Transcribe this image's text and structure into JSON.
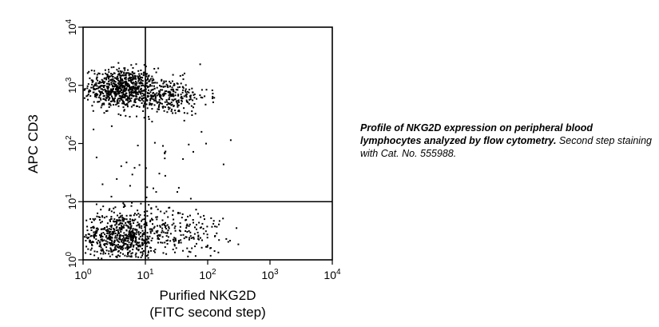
{
  "chart_data": {
    "type": "scatter",
    "title": "",
    "xlabel": [
      "Purified NKG2D",
      "(FITC second step)"
    ],
    "ylabel": "APC CD3",
    "x_scale": "log",
    "y_scale": "log",
    "xlim": [
      1,
      10000
    ],
    "ylim": [
      1,
      10000
    ],
    "xticks": [
      {
        "value": 1,
        "base": "10",
        "exp": "0"
      },
      {
        "value": 10,
        "base": "10",
        "exp": "1"
      },
      {
        "value": 100,
        "base": "10",
        "exp": "2"
      },
      {
        "value": 1000,
        "base": "10",
        "exp": "3"
      },
      {
        "value": 10000,
        "base": "10",
        "exp": "4"
      }
    ],
    "yticks": [
      {
        "value": 1,
        "base": "10",
        "exp": "0"
      },
      {
        "value": 10,
        "base": "10",
        "exp": "1"
      },
      {
        "value": 100,
        "base": "10",
        "exp": "2"
      },
      {
        "value": 1000,
        "base": "10",
        "exp": "3"
      },
      {
        "value": 10000,
        "base": "10",
        "exp": "4"
      }
    ],
    "quadrant_gates": {
      "x": 10,
      "y": 10
    },
    "point_color": "#000000",
    "clusters": [
      {
        "x_center": 4,
        "y_center": 900,
        "x_spread_decades": 0.28,
        "y_spread_decades": 0.17,
        "count": 700
      },
      {
        "x_center": 20,
        "y_center": 650,
        "x_spread_decades": 0.35,
        "y_spread_decades": 0.16,
        "count": 320
      },
      {
        "x_center": 4,
        "y_center": 2.5,
        "x_spread_decades": 0.3,
        "y_spread_decades": 0.22,
        "count": 650
      },
      {
        "x_center": 30,
        "y_center": 3,
        "x_spread_decades": 0.4,
        "y_spread_decades": 0.24,
        "count": 230
      },
      {
        "x_center": 12,
        "y_center": 30,
        "x_spread_decades": 0.45,
        "y_spread_decades": 0.5,
        "count": 40
      }
    ]
  },
  "caption": {
    "bold": "Profile of NKG2D expression on peripheral blood lymphocytes analyzed by flow cytometry.",
    "rest": " Second step staining with Cat. No. 555988."
  }
}
